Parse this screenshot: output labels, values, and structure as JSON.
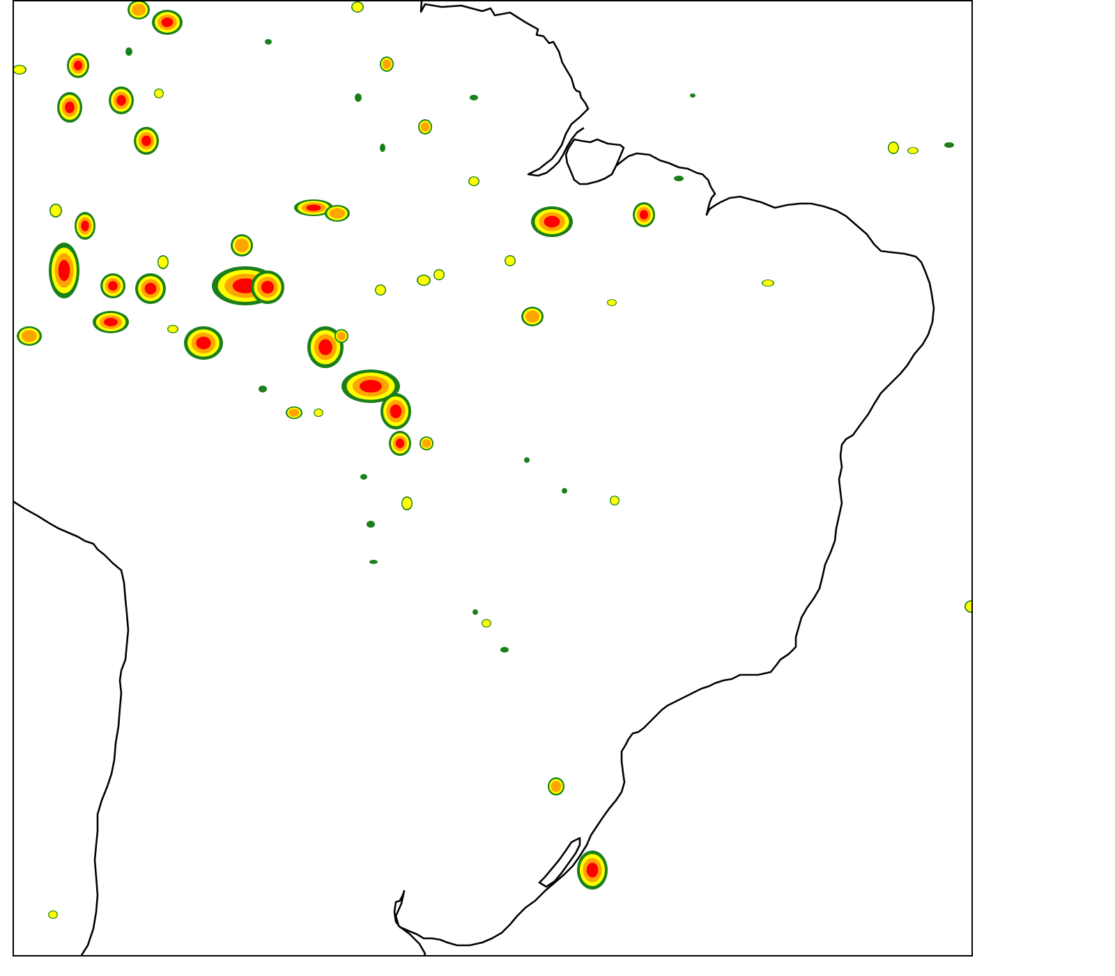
{
  "map": {
    "background_color": "#ffffff",
    "coastline_color": "#000000",
    "intensity_colors": {
      "lowest": "#1a7f1a",
      "low": "#ffff00",
      "high": "#ffa500",
      "highest": "#ff0000"
    },
    "legend": null
  }
}
